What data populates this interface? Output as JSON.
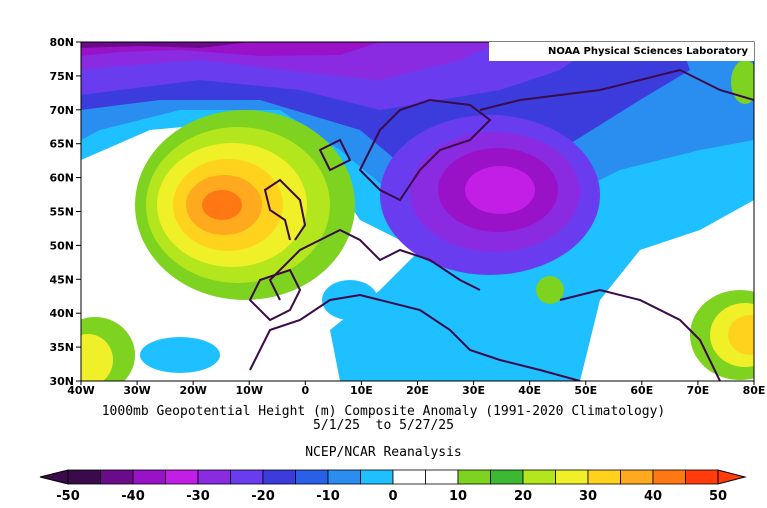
{
  "credit": "NOAA Physical Sciences Laboratory",
  "title_line1": "1000mb Geopotential Height (m) Composite Anomaly (1991-2020 Climatology)",
  "title_line2": "5/1/25  to 5/27/25",
  "source": "NCEP/NCAR Reanalysis",
  "lat_labels": [
    "80N",
    "75N",
    "70N",
    "65N",
    "60N",
    "55N",
    "50N",
    "45N",
    "40N",
    "35N",
    "30N"
  ],
  "lon_labels": [
    "40W",
    "30W",
    "20W",
    "10W",
    "0",
    "10E",
    "20E",
    "30E",
    "40E",
    "50E",
    "60E",
    "70E",
    "80E"
  ],
  "colorbar": {
    "labels": [
      "-50",
      "-40",
      "-30",
      "-20",
      "-10",
      "0",
      "10",
      "20",
      "30",
      "40",
      "50"
    ],
    "colors": [
      "#3a0a4a",
      "#6a0c8a",
      "#9a12c8",
      "#c21ee6",
      "#8a2be2",
      "#6a3cf0",
      "#3c3cdc",
      "#2860e6",
      "#2a8ef0",
      "#1ec0ff",
      "#ffffff",
      "#ffffff",
      "#7ed321",
      "#3cb832",
      "#b4e61e",
      "#f0f028",
      "#ffd21e",
      "#ffaa1e",
      "#ff7814",
      "#ff3c0a"
    ]
  }
}
